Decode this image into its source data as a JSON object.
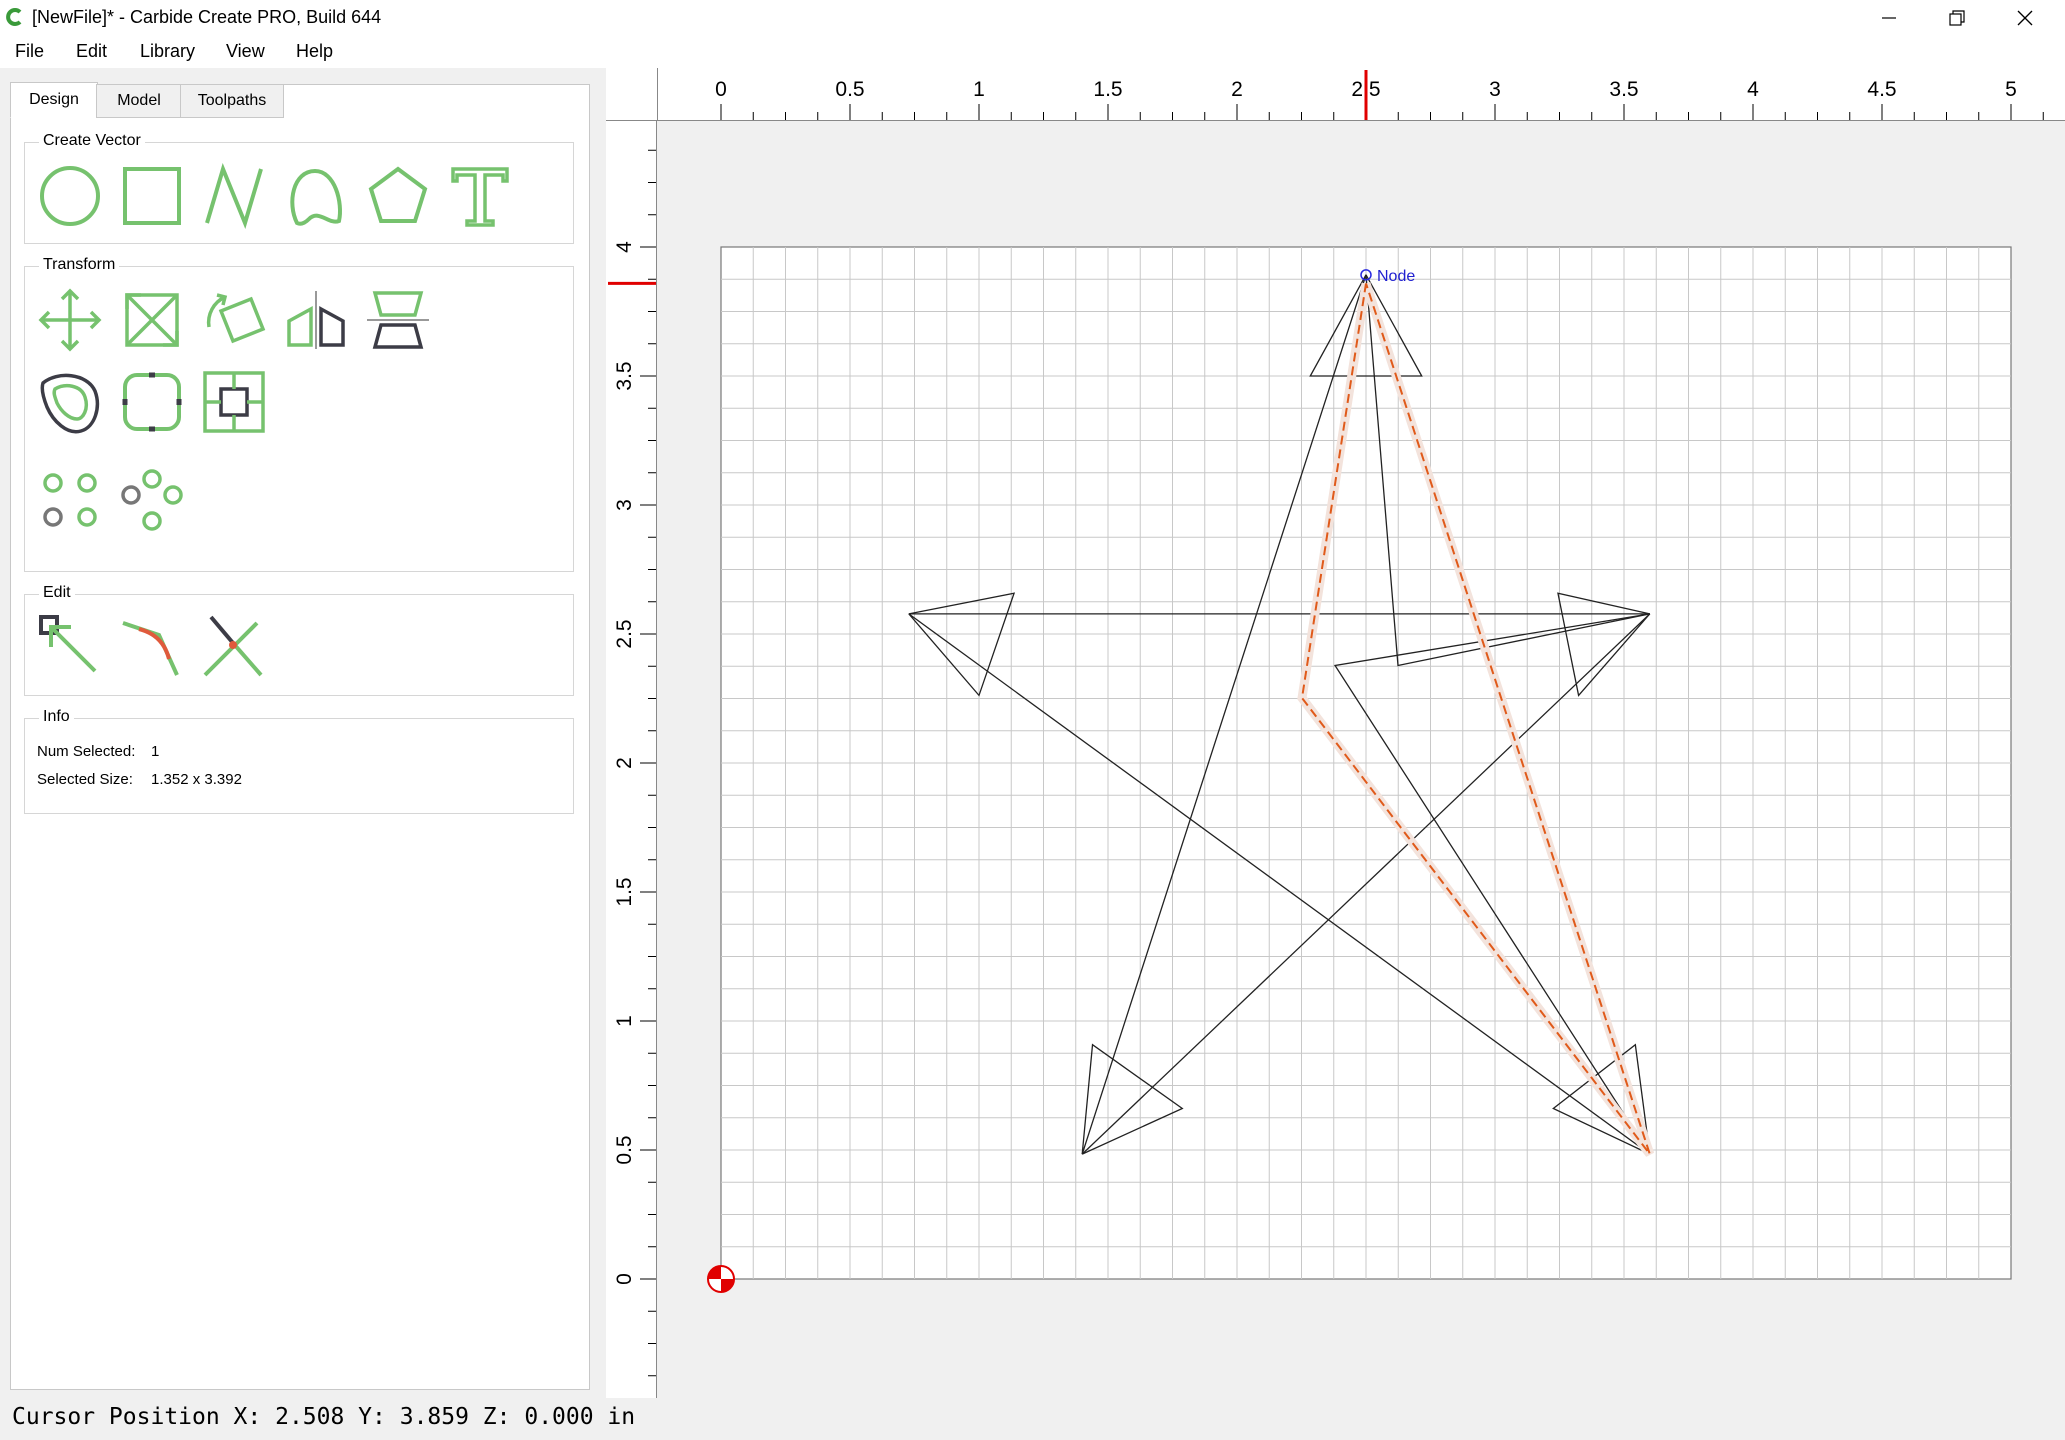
{
  "window": {
    "title": "[NewFile]* - Carbide Create PRO, Build 644",
    "icon": "carbide-logo-icon",
    "controls": [
      "minimize-icon",
      "restore-icon",
      "close-icon"
    ]
  },
  "menu": [
    {
      "label": "File"
    },
    {
      "label": "Edit"
    },
    {
      "label": "Library"
    },
    {
      "label": "View"
    },
    {
      "label": "Help"
    }
  ],
  "tabs": [
    {
      "label": "Design",
      "active": true
    },
    {
      "label": "Model",
      "active": false
    },
    {
      "label": "Toolpaths",
      "active": false
    }
  ],
  "create_vector": {
    "title": "Create Vector",
    "tools": [
      "circle-icon",
      "rectangle-icon",
      "polyline-icon",
      "curve-icon",
      "polygon-icon",
      "text-icon"
    ]
  },
  "transform": {
    "title": "Transform",
    "tools": [
      "move-icon",
      "scale-icon",
      "rotate-icon",
      "mirror-icon",
      "align-icon",
      "offset-icon",
      "fillet-icon",
      "boolean-icon",
      "circular-array-icon",
      "array-icon"
    ]
  },
  "edit": {
    "title": "Edit",
    "tools": [
      "node-edit-icon",
      "smooth-icon",
      "trim-icon"
    ]
  },
  "info": {
    "title": "Info",
    "num_selected_label": "Num Selected:",
    "num_selected_value": "1",
    "selected_size_label": "Selected Size:",
    "selected_size_value": "1.352 x 3.392"
  },
  "canvas": {
    "ruler_x_labels": [
      "0",
      "0.5",
      "1",
      "1.5",
      "2",
      "2.5",
      "3",
      "3.5",
      "4",
      "4.5",
      "5"
    ],
    "ruler_y_labels": [
      "0",
      "0.5",
      "1",
      "1.5",
      "2",
      "2.5",
      "3",
      "3.5",
      "4"
    ],
    "node_label": "Node",
    "accent_color": "#e05a1a",
    "tool_color": "#76c26e"
  },
  "status": {
    "cursor_text": "Cursor Position X: 2.508 Y: 3.859 Z: 0.000 in"
  }
}
